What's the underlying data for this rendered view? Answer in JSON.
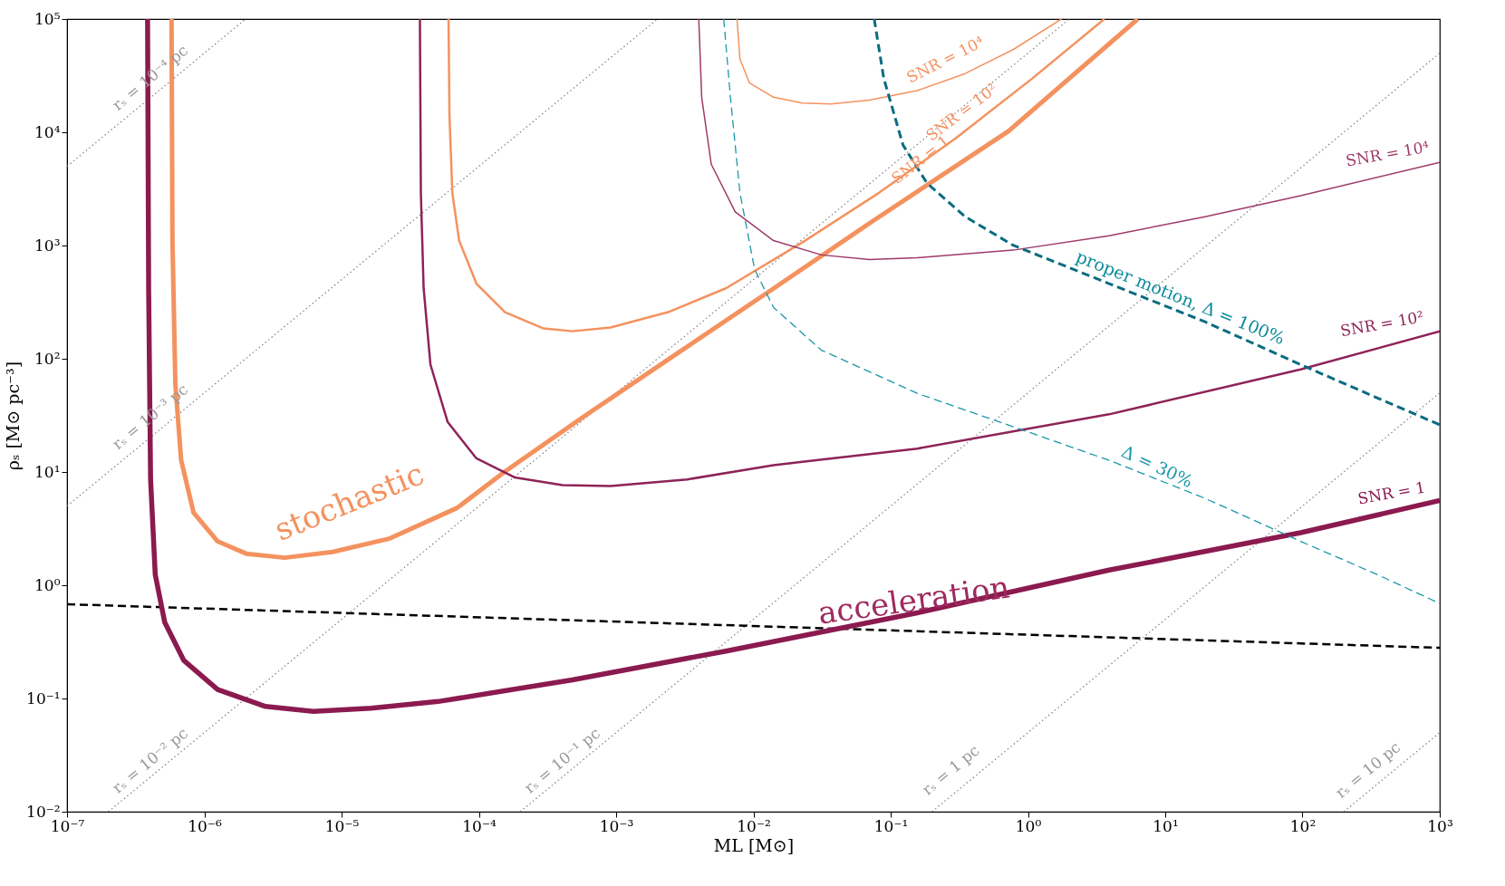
{
  "chart_data": {
    "type": "line",
    "xlabel": "ML [M⊙]",
    "ylabel": "ρₛ [M⊙ pc⁻³]",
    "log": "xy",
    "xlim": [
      1e-07,
      1000.0
    ],
    "ylim": [
      0.01,
      100000.0
    ],
    "xticks": [
      {
        "value": 1e-07,
        "label": "10⁻⁷"
      },
      {
        "value": 1e-06,
        "label": "10⁻⁶"
      },
      {
        "value": 1e-05,
        "label": "10⁻⁵"
      },
      {
        "value": 0.0001,
        "label": "10⁻⁴"
      },
      {
        "value": 0.001,
        "label": "10⁻³"
      },
      {
        "value": 0.01,
        "label": "10⁻²"
      },
      {
        "value": 0.1,
        "label": "10⁻¹"
      },
      {
        "value": 1,
        "label": "10⁰"
      },
      {
        "value": 10,
        "label": "10¹"
      },
      {
        "value": 100,
        "label": "10²"
      },
      {
        "value": 1000,
        "label": "10³"
      }
    ],
    "yticks": [
      {
        "value": 0.01,
        "label": "10⁻²"
      },
      {
        "value": 0.1,
        "label": "10⁻¹"
      },
      {
        "value": 1,
        "label": "10⁰"
      },
      {
        "value": 10,
        "label": "10¹"
      },
      {
        "value": 100,
        "label": "10²"
      },
      {
        "value": 1000,
        "label": "10³"
      },
      {
        "value": 10000.0,
        "label": "10⁴"
      },
      {
        "value": 100000.0,
        "label": "10⁵"
      }
    ],
    "series": [
      {
        "color": "#808080",
        "line_style": "dotted",
        "x": [
          1e-07,
          2e-06
        ],
        "values": [
          5000.0,
          100000.0
        ]
      },
      {
        "color": "#808080",
        "line_style": "dotted",
        "x": [
          1e-07,
          0.002
        ],
        "values": [
          5,
          100000.0
        ]
      },
      {
        "color": "#808080",
        "line_style": "dotted",
        "x": [
          2e-07,
          2
        ],
        "values": [
          0.01,
          100000.0
        ]
      },
      {
        "color": "#808080",
        "line_style": "dotted",
        "x": [
          0.0002,
          1000.0
        ],
        "values": [
          0.01,
          50000.0
        ]
      },
      {
        "color": "#808080",
        "line_style": "dotted",
        "x": [
          0.2,
          1000.0
        ],
        "values": [
          0.01,
          50
        ]
      },
      {
        "color": "#808080",
        "line_style": "dotted",
        "x": [
          200,
          1000.0
        ],
        "values": [
          0.01,
          0.05
        ]
      },
      {
        "color": "#000000",
        "line_style": "dashed",
        "x": [
          1e-07,
          1000.0
        ],
        "values": [
          0.68,
          0.28
        ]
      },
      {
        "color": "#f4925f",
        "line_style": "solid",
        "x": [
          0.0076,
          0.00798,
          0.00937,
          0.014,
          0.0227,
          0.0368,
          0.07,
          0.156,
          0.349,
          0.78,
          1.75
        ],
        "values": [
          100000.0,
          44300.0,
          27200.0,
          20400.0,
          18100.0,
          17800.0,
          19200.0,
          23300.0,
          33000.0,
          53700.0,
          100000.0
        ]
      },
      {
        "color": "#f4925f",
        "line_style": "solid",
        "x": [
          6.01e-05,
          6.11e-05,
          6.41e-05,
          7.18e-05,
          9.6e-05,
          0.000155,
          0.000296,
          0.00048,
          0.00091,
          0.00239,
          0.0063,
          0.0227,
          0.0822,
          0.297,
          1.08,
          3.6
        ],
        "values": [
          100000.0,
          13800.0,
          2920,
          1106,
          461,
          258,
          185,
          175,
          189,
          258,
          419,
          1064,
          2920,
          8830,
          30000.0,
          100000.0
        ]
      },
      {
        "color": "#f4925f",
        "line_style": "solid",
        "x": [
          5.77e-07,
          5.86e-07,
          6.15e-07,
          6.78e-07,
          8.35e-07,
          1.25e-06,
          2.02e-06,
          3.85e-06,
          8.6e-06,
          2.25e-05,
          6.95e-05,
          0.000155,
          0.00056,
          0.0028,
          0.014,
          0.07,
          0.72,
          6.3
        ],
        "values": [
          100000.0,
          1106,
          60.1,
          12.7,
          4.38,
          2.44,
          1.9,
          1.75,
          1.97,
          2.59,
          4.82,
          10.1,
          29.9,
          112,
          417,
          1570,
          10200.0,
          100000.0
        ]
      },
      {
        "color": "#9e3a6a",
        "line_style": "solid",
        "x": [
          0.004,
          0.0042,
          0.00493,
          0.00737,
          0.014,
          0.0313,
          0.07,
          0.156,
          0.78,
          3.9,
          19.5,
          97,
          1000
        ],
        "values": [
          100000.0,
          20400.0,
          5224,
          1982,
          1106,
          826,
          750,
          780,
          910,
          1219,
          1798,
          2755,
          5430
        ]
      },
      {
        "color": "#8e2358",
        "line_style": "solid",
        "x": [
          3.72e-05,
          3.78e-05,
          3.96e-05,
          4.44e-05,
          5.92e-05,
          9.6e-05,
          0.000182,
          0.000407,
          0.00091,
          0.0033,
          0.014,
          0.156,
          3.9,
          97,
          1000
        ],
        "values": [
          100000.0,
          2920,
          419,
          88.7,
          27.7,
          13.2,
          8.97,
          7.67,
          7.53,
          8.6,
          11.5,
          16.1,
          32.3,
          80.5,
          175
        ]
      },
      {
        "color": "#8b1a4f",
        "line_style": "solid",
        "x": [
          3.86e-07,
          3.93e-07,
          4.06e-07,
          4.39e-07,
          5.15e-07,
          7.1e-07,
          1.25e-06,
          2.79e-06,
          6.24e-06,
          1.64e-05,
          5.05e-05,
          0.00048,
          0.0063,
          0.156,
          3.9,
          97,
          1000
        ],
        "values": [
          100000.0,
          417,
          8.6,
          1.24,
          0.469,
          0.216,
          0.12,
          0.085,
          0.077,
          0.082,
          0.094,
          0.146,
          0.262,
          0.57,
          1.36,
          2.91,
          5.6
        ]
      },
      {
        "color": "#1b98a8",
        "line_style": "dashed",
        "x": [
          0.00608,
          0.0068,
          0.00798,
          0.0102,
          0.014,
          0.0313,
          0.156,
          0.78,
          3.9,
          19.5,
          97,
          352,
          1000
        ],
        "values": [
          100000.0,
          20400.0,
          2920,
          618,
          284,
          119,
          49.5,
          25.1,
          12.7,
          5.85,
          2.44,
          1.24,
          0.69
        ]
      },
      {
        "color": "#0b6c80",
        "line_style": "dashed",
        "x": [
          0.0759,
          0.089,
          0.123,
          0.184,
          0.349,
          0.78,
          3.9,
          19.5,
          97,
          352,
          1000
        ],
        "values": [
          100000.0,
          30000.0,
          7710,
          3548,
          1798,
          1005,
          461,
          212,
          88.7,
          45,
          26.1
        ]
      }
    ],
    "annotations": [
      "rₛ = 10⁻⁴ pc",
      "rₛ = 10⁻³ pc",
      "rₛ = 10⁻² pc",
      "rₛ = 10⁻¹ pc",
      "rₛ = 1 pc",
      "rₛ = 10 pc",
      "SNR = 10⁴",
      "SNR = 10²",
      "SNR = 1",
      "SNR = 10⁴",
      "SNR = 10²",
      "SNR = 1",
      "proper motion, Δ = 100%",
      "Δ = 30%",
      "stochastic",
      "acceleration"
    ]
  }
}
